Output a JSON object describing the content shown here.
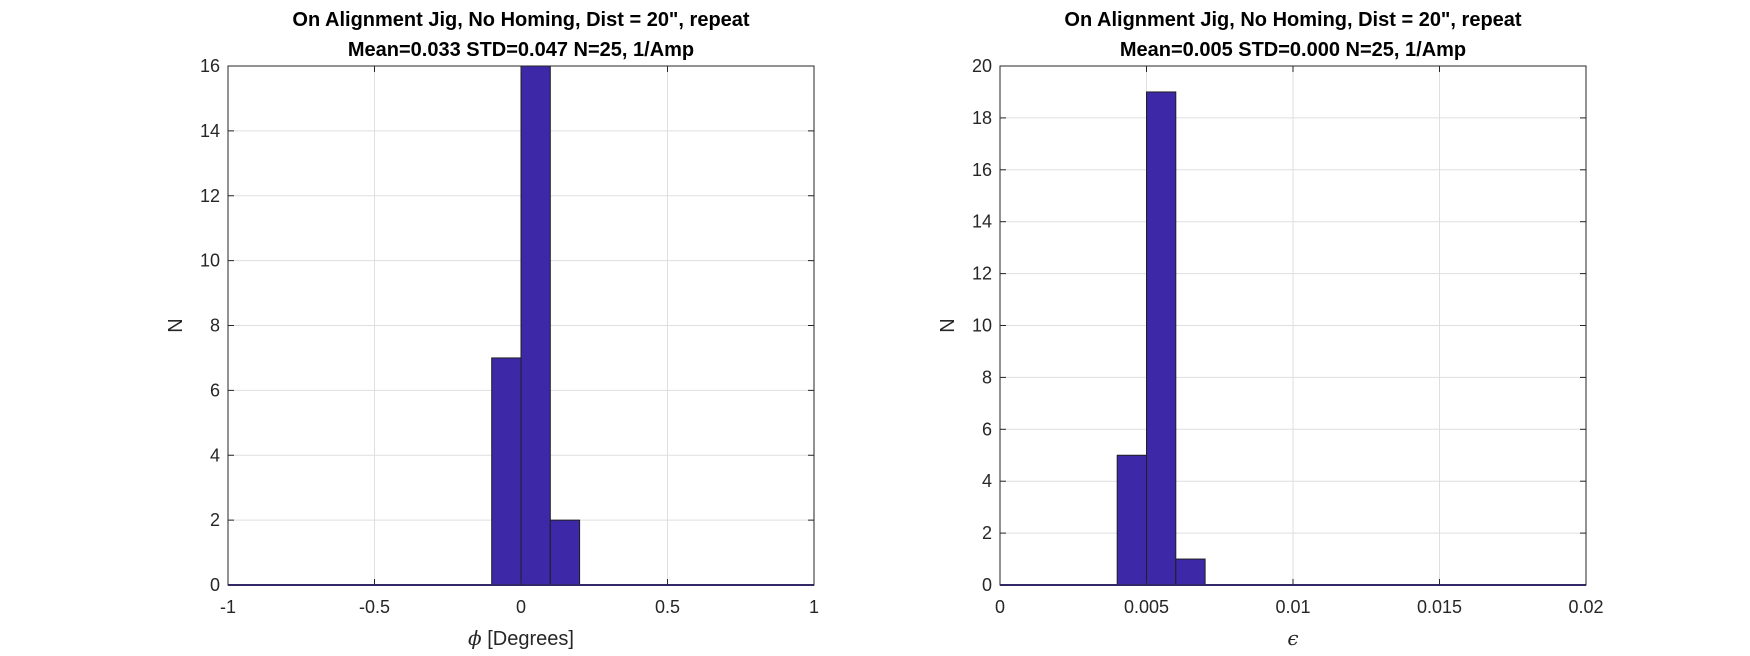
{
  "chart_data": [
    {
      "type": "bar",
      "title": "On Alignment Jig, No Homing, Dist = 20\", repeat",
      "subtitle": "Mean=0.033 STD=0.047 N=25, 1/Amp",
      "xlabel_symbol": "ϕ",
      "xlabel": "[Degrees]",
      "ylabel": "N",
      "xlim": [
        -1,
        1
      ],
      "ylim": [
        0,
        16
      ],
      "xticks": [
        -1,
        -0.5,
        0,
        0.5,
        1
      ],
      "xtick_labels": [
        "-1",
        "-0.5",
        "0",
        "0.5",
        "1"
      ],
      "yticks": [
        0,
        2,
        4,
        6,
        8,
        10,
        12,
        14,
        16
      ],
      "ytick_labels": [
        "0",
        "2",
        "4",
        "6",
        "8",
        "10",
        "12",
        "14",
        "16"
      ],
      "grid": true,
      "bar_color": "#3d28a8",
      "bins": [
        {
          "x0": -0.1,
          "x1": 0.0,
          "value": 7
        },
        {
          "x0": 0.0,
          "x1": 0.1,
          "value": 16
        },
        {
          "x0": 0.1,
          "x1": 0.2,
          "value": 2
        }
      ]
    },
    {
      "type": "bar",
      "title": "On Alignment Jig, No Homing, Dist = 20\", repeat",
      "subtitle": "Mean=0.005 STD=0.000 N=25, 1/Amp",
      "xlabel_symbol": "ϵ",
      "xlabel": "",
      "ylabel": "N",
      "xlim": [
        0,
        0.02
      ],
      "ylim": [
        0,
        20
      ],
      "xticks": [
        0,
        0.005,
        0.01,
        0.015,
        0.02
      ],
      "xtick_labels": [
        "0",
        "0.005",
        "0.01",
        "0.015",
        "0.02"
      ],
      "yticks": [
        0,
        2,
        4,
        6,
        8,
        10,
        12,
        14,
        16,
        18,
        20
      ],
      "ytick_labels": [
        "0",
        "2",
        "4",
        "6",
        "8",
        "10",
        "12",
        "14",
        "16",
        "18",
        "20"
      ],
      "grid": true,
      "bar_color": "#3d28a8",
      "bins": [
        {
          "x0": 0.004,
          "x1": 0.005,
          "value": 5
        },
        {
          "x0": 0.005,
          "x1": 0.006,
          "value": 19
        },
        {
          "x0": 0.006,
          "x1": 0.007,
          "value": 1
        }
      ]
    }
  ]
}
